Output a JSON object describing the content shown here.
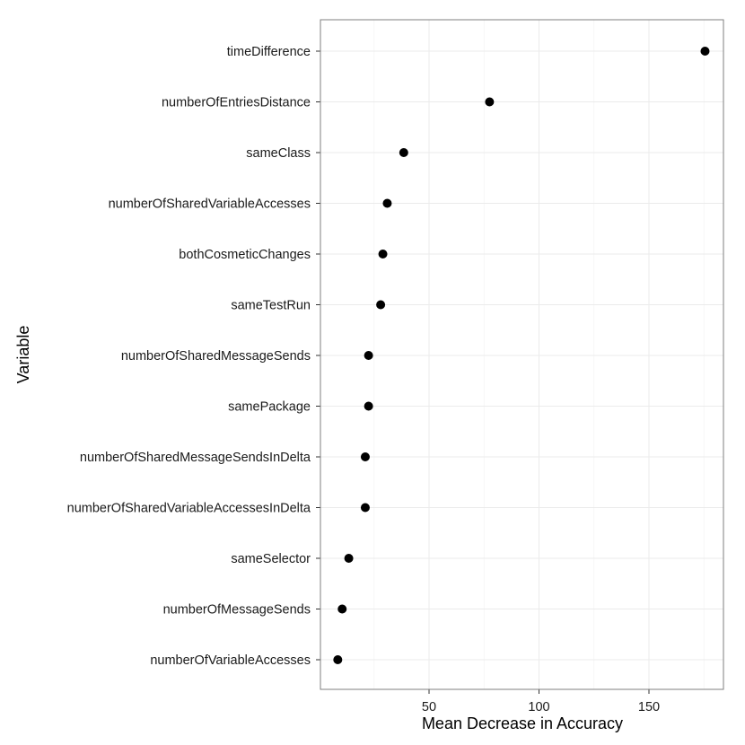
{
  "chart_data": {
    "type": "scatter",
    "title": "",
    "xlabel": "Mean Decrease in Accuracy",
    "ylabel": "Variable",
    "xlim": [
      0,
      185
    ],
    "xticks": [
      50,
      100,
      150
    ],
    "grid": true,
    "categories": [
      "timeDifference",
      "numberOfEntriesDistance",
      "sameClass",
      "numberOfSharedVariableAccesses",
      "bothCosmeticChanges",
      "sameTestRun",
      "numberOfSharedMessageSends",
      "samePackage",
      "numberOfSharedMessageSendsInDelta",
      "numberOfSharedVariableAccessesInDelta",
      "sameSelector",
      "numberOfMessageSends",
      "numberOfVariableAccesses"
    ],
    "values": [
      175.5,
      77.5,
      38.5,
      31,
      29,
      28,
      22.5,
      22.5,
      21,
      21,
      13.5,
      10.5,
      8.5
    ],
    "colors": {
      "point": "#000000",
      "grid_major": "#ebebeb",
      "grid_minor": "#f5f5f5",
      "panel_border": "#7f7f7f"
    }
  }
}
